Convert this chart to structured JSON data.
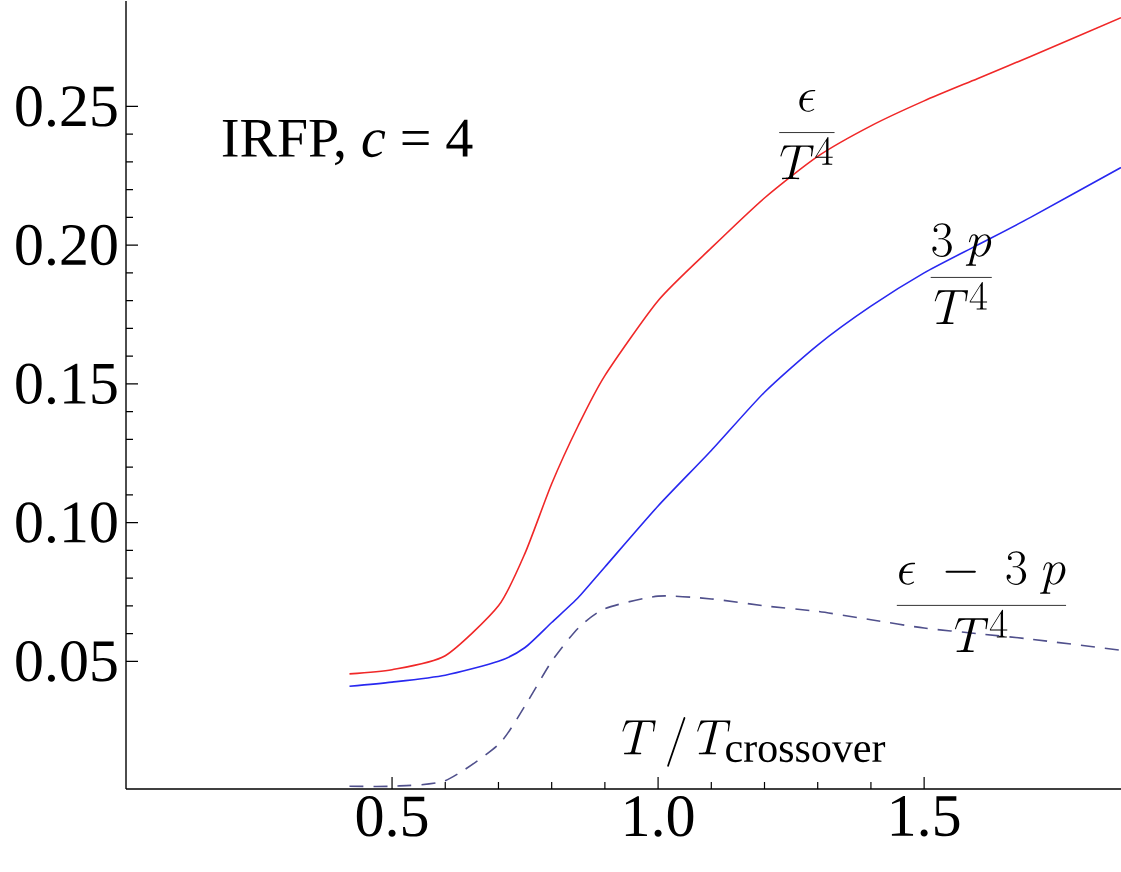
{
  "chart_data": {
    "type": "line",
    "xlabel": "T\\,/\\,T_{\\mathrm{crossover}}",
    "annotations": [
      "IRFP,  *c*  =  4"
    ],
    "x": [
      0.42,
      0.5,
      0.6,
      0.7,
      0.75,
      0.8,
      0.85,
      0.9,
      1.0,
      1.1,
      1.2,
      1.3,
      1.4,
      1.5,
      1.6,
      1.7,
      1.87
    ],
    "series": [
      {
        "name": "\\frac{\\epsilon}{T^{4}}",
        "color": "#f02828",
        "line_style": "solid",
        "values": [
          0.0455,
          0.047,
          0.052,
          0.07,
          0.089,
          0.114,
          0.135,
          0.153,
          0.18,
          0.199,
          0.217,
          0.232,
          0.243,
          0.252,
          0.26,
          0.268,
          0.282
        ]
      },
      {
        "name": "\\frac{3\\;p}{T^{4}}",
        "color": "#2828f0",
        "line_style": "solid",
        "values": [
          0.041,
          0.0425,
          0.045,
          0.05,
          0.055,
          0.064,
          0.073,
          0.084,
          0.106,
          0.126,
          0.147,
          0.164,
          0.178,
          0.19,
          0.2,
          0.21,
          0.228
        ]
      },
      {
        "name": "\\frac{\\epsilon\\;-\\;3\\;p}{T^{4}}",
        "color": "#50508c",
        "line_style": "dashed",
        "values": [
          0.005,
          0.005,
          0.007,
          0.02,
          0.034,
          0.05,
          0.062,
          0.069,
          0.0735,
          0.0725,
          0.07,
          0.068,
          0.065,
          0.062,
          0.06,
          0.058,
          0.054
        ]
      }
    ],
    "xlim": [
      0,
      1.87
    ],
    "ylim": [
      0.004,
      0.288
    ],
    "xticks": [
      0.5,
      {
        "value": 1.0,
        "label": "1.0"
      },
      1.5
    ],
    "yticks": [
      0.05,
      {
        "value": 0.1,
        "label": "0.10"
      },
      0.15,
      {
        "value": 0.2,
        "label": "0.20"
      },
      0.25
    ],
    "grid": false,
    "legend": false
  }
}
